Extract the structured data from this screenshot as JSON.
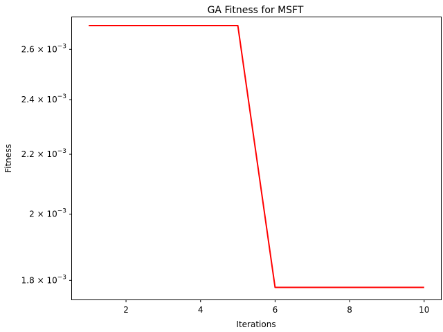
{
  "chart_data": {
    "type": "line",
    "title": "GA Fitness for MSFT",
    "xlabel": "Iterations",
    "ylabel": "Fitness",
    "x_scale": "linear",
    "y_scale": "log",
    "xlim": [
      0.55,
      10.45
    ],
    "ylim": [
      0.001746,
      0.002736
    ],
    "grid": false,
    "x": [
      1,
      2,
      3,
      4,
      5,
      6,
      7,
      8,
      9,
      10
    ],
    "series": [
      {
        "color": "#ff0000",
        "values": [
          0.0027,
          0.0027,
          0.0027,
          0.0027,
          0.0027,
          0.00178,
          0.00178,
          0.00178,
          0.00178,
          0.00178
        ]
      }
    ],
    "xticks": [
      {
        "value": 2,
        "label": "2"
      },
      {
        "value": 4,
        "label": "4"
      },
      {
        "value": 6,
        "label": "6"
      },
      {
        "value": 8,
        "label": "8"
      },
      {
        "value": 10,
        "label": "10"
      }
    ],
    "yticks": [
      {
        "value": 0.0018,
        "mantissa": "1.8",
        "base": "10",
        "exp": "−3"
      },
      {
        "value": 0.002,
        "mantissa": "2",
        "base": "10",
        "exp": "−3"
      },
      {
        "value": 0.0022,
        "mantissa": "2.2",
        "base": "10",
        "exp": "−3"
      },
      {
        "value": 0.0024,
        "mantissa": "2.4",
        "base": "10",
        "exp": "−3"
      },
      {
        "value": 0.0026,
        "mantissa": "2.6",
        "base": "10",
        "exp": "−3"
      }
    ]
  }
}
